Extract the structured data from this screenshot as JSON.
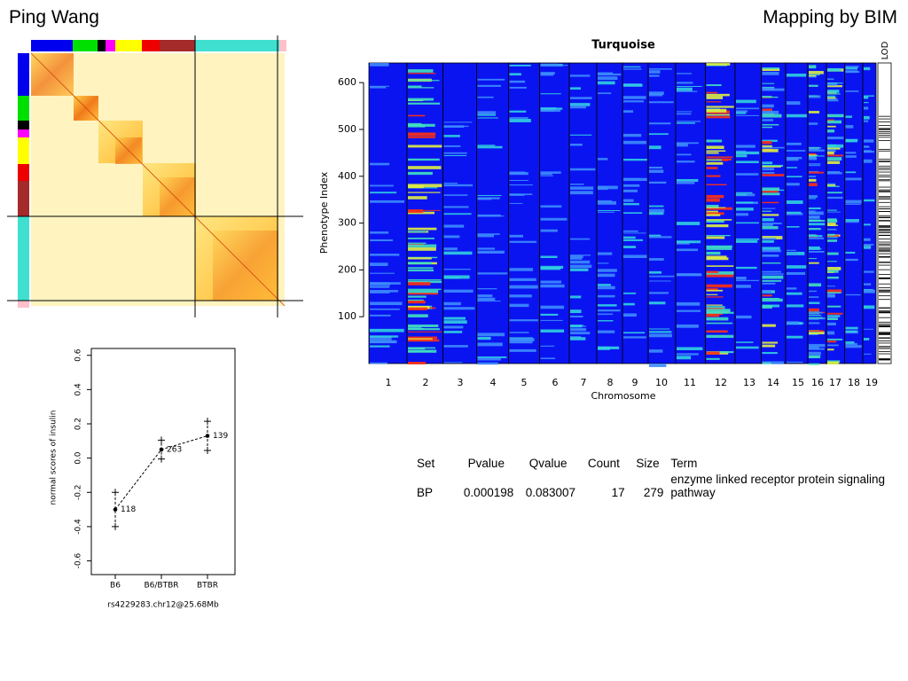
{
  "header": {
    "left": "Ping Wang",
    "right": "Mapping by BIM"
  },
  "chart_data": [
    {
      "type": "heatmap",
      "title": "Turquoise",
      "xlabel": "Chromosome",
      "ylabel": "Phenotype Index",
      "colorbar_label": "LOD",
      "categories": [
        "1",
        "2",
        "3",
        "4",
        "5",
        "6",
        "7",
        "8",
        "9",
        "10",
        "11",
        "12",
        "13",
        "14",
        "15",
        "16",
        "17",
        "18",
        "19"
      ],
      "ylim": [
        0,
        642
      ],
      "yticks": [
        100,
        200,
        300,
        400,
        500,
        600
      ]
    },
    {
      "type": "line",
      "xlabel": "rs4229283.chr12@25.68Mb",
      "ylabel": "normal scores of insulin",
      "categories": [
        "B6",
        "B6/BTBR",
        "BTBR"
      ],
      "values": [
        -0.3,
        0.05,
        0.13
      ],
      "errors": [
        0.1,
        0.055,
        0.085
      ],
      "counts": [
        118,
        263,
        139
      ],
      "color": "#000000",
      "ylim": [
        -0.68,
        0.64
      ],
      "yticks": [
        -0.6,
        -0.4,
        -0.2,
        {
          "value": 0,
          "label": "0.0"
        },
        0.2,
        0.4,
        0.6
      ]
    }
  ],
  "table": {
    "columns": [
      "Set",
      "Pvalue",
      "Qvalue",
      "Count",
      "Size",
      "Term"
    ],
    "rows": [
      [
        "BP",
        0.000198,
        0.083007,
        17,
        279,
        "enzyme linked receptor protein signaling pathway"
      ]
    ]
  }
}
